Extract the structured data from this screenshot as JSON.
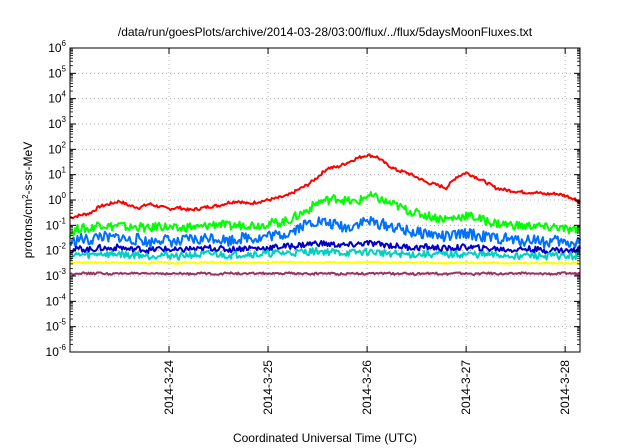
{
  "chart_data": {
    "type": "line",
    "title": "/data/run/goesPlots/archive/2014-03-28/03:00/flux/../flux/5daysMoonFluxes.txt",
    "xlabel": "Coordinated Universal Time (UTC)",
    "ylabel_parts": {
      "base": "protons/cm",
      "sup": "2",
      "rest": "-s-sr-MeV"
    },
    "y_scale": "log",
    "ylim": [
      1e-06,
      1000000.0
    ],
    "y_ticks": [
      {
        "base": "10",
        "exp": "-6",
        "value": 1e-06
      },
      {
        "base": "10",
        "exp": "-5",
        "value": 1e-05
      },
      {
        "base": "10",
        "exp": "-4",
        "value": 0.0001
      },
      {
        "base": "10",
        "exp": "-3",
        "value": 0.001
      },
      {
        "base": "10",
        "exp": "-2",
        "value": 0.01
      },
      {
        "base": "10",
        "exp": "-1",
        "value": 0.1
      },
      {
        "base": "10",
        "exp": "0",
        "value": 1.0
      },
      {
        "base": "10",
        "exp": "1",
        "value": 10.0
      },
      {
        "base": "10",
        "exp": "2",
        "value": 100.0
      },
      {
        "base": "10",
        "exp": "3",
        "value": 1000.0
      },
      {
        "base": "10",
        "exp": "4",
        "value": 10000.0
      },
      {
        "base": "10",
        "exp": "5",
        "value": 100000.0
      },
      {
        "base": "10",
        "exp": "6",
        "value": 1000000.0
      }
    ],
    "x_ticks": [
      "2014-3-24",
      "2014-3-25",
      "2014-3-26",
      "2014-3-27",
      "2014-3-28"
    ],
    "x_tick_pos": [
      1,
      2,
      3,
      4,
      5
    ],
    "xlim": [
      0,
      5.15
    ],
    "grid": true,
    "series": [
      {
        "color": "#ff0000",
        "x": [
          0,
          0.1,
          0.2,
          0.3,
          0.4,
          0.5,
          0.6,
          0.7,
          0.8,
          0.9,
          1.0,
          1.1,
          1.2,
          1.3,
          1.4,
          1.5,
          1.6,
          1.7,
          1.8,
          1.9,
          2.0,
          2.1,
          2.2,
          2.3,
          2.4,
          2.5,
          2.6,
          2.7,
          2.8,
          2.9,
          3.0,
          3.1,
          3.2,
          3.3,
          3.4,
          3.5,
          3.6,
          3.7,
          3.8,
          3.9,
          4.0,
          4.1,
          4.2,
          4.3,
          4.4,
          4.5,
          4.6,
          4.7,
          4.8,
          4.9,
          5.0,
          5.1,
          5.15
        ],
        "values": [
          0.2,
          0.25,
          0.3,
          0.55,
          0.7,
          0.9,
          0.6,
          0.5,
          0.7,
          0.55,
          0.45,
          0.5,
          0.4,
          0.45,
          0.55,
          0.6,
          0.8,
          0.9,
          0.7,
          0.85,
          1.0,
          1.2,
          1.5,
          2.5,
          4,
          8,
          18,
          20,
          30,
          45,
          60,
          50,
          25,
          15,
          12,
          8,
          5,
          4,
          3,
          8,
          12,
          8,
          5,
          3,
          2.5,
          2.2,
          2,
          2,
          1.7,
          1.8,
          1.5,
          1.1,
          0.8
        ]
      },
      {
        "color": "#00ff00",
        "x": [
          0,
          0.1,
          0.2,
          0.3,
          0.4,
          0.5,
          0.6,
          0.7,
          0.8,
          0.9,
          1.0,
          1.1,
          1.2,
          1.3,
          1.4,
          1.5,
          1.6,
          1.7,
          1.8,
          1.9,
          2.0,
          2.1,
          2.2,
          2.3,
          2.4,
          2.5,
          2.6,
          2.7,
          2.8,
          2.9,
          3.0,
          3.1,
          3.2,
          3.3,
          3.4,
          3.5,
          3.6,
          3.7,
          3.8,
          3.9,
          4.0,
          4.1,
          4.2,
          4.3,
          4.4,
          4.5,
          4.6,
          4.7,
          4.8,
          4.9,
          5.0,
          5.1,
          5.15
        ],
        "values": [
          0.05,
          0.08,
          0.07,
          0.12,
          0.09,
          0.1,
          0.08,
          0.09,
          0.07,
          0.1,
          0.08,
          0.07,
          0.09,
          0.08,
          0.1,
          0.12,
          0.09,
          0.1,
          0.11,
          0.1,
          0.12,
          0.13,
          0.15,
          0.25,
          0.4,
          0.8,
          1.0,
          1.2,
          0.9,
          0.8,
          1.5,
          1.2,
          0.8,
          0.6,
          0.4,
          0.3,
          0.25,
          0.2,
          0.18,
          0.2,
          0.25,
          0.2,
          0.15,
          0.12,
          0.11,
          0.1,
          0.09,
          0.1,
          0.08,
          0.09,
          0.07,
          0.06,
          0.09
        ]
      },
      {
        "color": "#0070ff",
        "x": [
          0,
          0.1,
          0.2,
          0.3,
          0.4,
          0.5,
          0.6,
          0.7,
          0.8,
          0.9,
          1.0,
          1.1,
          1.2,
          1.3,
          1.4,
          1.5,
          1.6,
          1.7,
          1.8,
          1.9,
          2.0,
          2.1,
          2.2,
          2.3,
          2.4,
          2.5,
          2.6,
          2.7,
          2.8,
          2.9,
          3.0,
          3.1,
          3.2,
          3.3,
          3.4,
          3.5,
          3.6,
          3.7,
          3.8,
          3.9,
          4.0,
          4.1,
          4.2,
          4.3,
          4.4,
          4.5,
          4.6,
          4.7,
          4.8,
          4.9,
          5.0,
          5.1,
          5.15
        ],
        "values": [
          0.02,
          0.03,
          0.025,
          0.04,
          0.03,
          0.035,
          0.025,
          0.03,
          0.02,
          0.03,
          0.025,
          0.02,
          0.03,
          0.025,
          0.035,
          0.03,
          0.025,
          0.03,
          0.035,
          0.03,
          0.04,
          0.04,
          0.05,
          0.08,
          0.12,
          0.15,
          0.12,
          0.1,
          0.08,
          0.12,
          0.15,
          0.12,
          0.1,
          0.08,
          0.06,
          0.05,
          0.05,
          0.04,
          0.035,
          0.04,
          0.05,
          0.04,
          0.035,
          0.03,
          0.03,
          0.025,
          0.025,
          0.03,
          0.02,
          0.025,
          0.02,
          0.02,
          0.03
        ]
      },
      {
        "color": "#0000c8",
        "x": [
          0,
          0.1,
          0.2,
          0.3,
          0.4,
          0.5,
          0.6,
          0.7,
          0.8,
          0.9,
          1.0,
          1.1,
          1.2,
          1.3,
          1.4,
          1.5,
          1.6,
          1.7,
          1.8,
          1.9,
          2.0,
          2.1,
          2.2,
          2.3,
          2.4,
          2.5,
          2.6,
          2.7,
          2.8,
          2.9,
          3.0,
          3.1,
          3.2,
          3.3,
          3.4,
          3.5,
          3.6,
          3.7,
          3.8,
          3.9,
          4.0,
          4.1,
          4.2,
          4.3,
          4.4,
          4.5,
          4.6,
          4.7,
          4.8,
          4.9,
          5.0,
          5.1,
          5.15
        ],
        "values": [
          0.01,
          0.012,
          0.011,
          0.013,
          0.012,
          0.014,
          0.011,
          0.012,
          0.01,
          0.012,
          0.011,
          0.01,
          0.012,
          0.011,
          0.013,
          0.012,
          0.011,
          0.012,
          0.013,
          0.012,
          0.013,
          0.014,
          0.015,
          0.016,
          0.018,
          0.02,
          0.018,
          0.017,
          0.016,
          0.018,
          0.02,
          0.018,
          0.017,
          0.015,
          0.014,
          0.013,
          0.014,
          0.013,
          0.012,
          0.013,
          0.014,
          0.013,
          0.012,
          0.012,
          0.011,
          0.011,
          0.012,
          0.011,
          0.01,
          0.011,
          0.01,
          0.01,
          0.012
        ]
      },
      {
        "color": "#00d0c0",
        "x": [
          0,
          0.1,
          0.2,
          0.3,
          0.4,
          0.5,
          0.6,
          0.7,
          0.8,
          0.9,
          1.0,
          1.1,
          1.2,
          1.3,
          1.4,
          1.5,
          1.6,
          1.7,
          1.8,
          1.9,
          2.0,
          2.1,
          2.2,
          2.3,
          2.4,
          2.5,
          2.6,
          2.7,
          2.8,
          2.9,
          3.0,
          3.1,
          3.2,
          3.3,
          3.4,
          3.5,
          3.6,
          3.7,
          3.8,
          3.9,
          4.0,
          4.1,
          4.2,
          4.3,
          4.4,
          4.5,
          4.6,
          4.7,
          4.8,
          4.9,
          5.0,
          5.1,
          5.15
        ],
        "values": [
          0.006,
          0.007,
          0.0065,
          0.008,
          0.007,
          0.0075,
          0.0065,
          0.007,
          0.006,
          0.007,
          0.0065,
          0.006,
          0.007,
          0.0065,
          0.0075,
          0.007,
          0.0065,
          0.007,
          0.0075,
          0.007,
          0.0075,
          0.008,
          0.008,
          0.0085,
          0.009,
          0.0095,
          0.009,
          0.0085,
          0.008,
          0.0085,
          0.009,
          0.0085,
          0.008,
          0.0075,
          0.007,
          0.007,
          0.0072,
          0.007,
          0.0068,
          0.007,
          0.0072,
          0.007,
          0.0068,
          0.0065,
          0.0065,
          0.0062,
          0.0065,
          0.0062,
          0.006,
          0.0062,
          0.006,
          0.006,
          0.0065
        ]
      },
      {
        "color": "#ffff00",
        "x": [
          0,
          0.1,
          0.2,
          0.3,
          0.4,
          0.5,
          0.6,
          0.7,
          0.8,
          0.9,
          1.0,
          1.1,
          1.2,
          1.3,
          1.4,
          1.5,
          1.6,
          1.7,
          1.8,
          1.9,
          2.0,
          2.1,
          2.2,
          2.3,
          2.4,
          2.5,
          2.6,
          2.7,
          2.8,
          2.9,
          3.0,
          3.1,
          3.2,
          3.3,
          3.4,
          3.5,
          3.6,
          3.7,
          3.8,
          3.9,
          4.0,
          4.1,
          4.2,
          4.3,
          4.4,
          4.5,
          4.6,
          4.7,
          4.8,
          4.9,
          5.0,
          5.1,
          5.15
        ],
        "values": [
          0.0032,
          0.0034,
          0.0033,
          0.0035,
          0.0034,
          0.0034,
          0.0033,
          0.0034,
          0.0032,
          0.0034,
          0.0033,
          0.0032,
          0.0034,
          0.0033,
          0.0034,
          0.0034,
          0.0033,
          0.0034,
          0.0034,
          0.0033,
          0.0034,
          0.0035,
          0.0035,
          0.0034,
          0.0035,
          0.0034,
          0.0035,
          0.0034,
          0.0033,
          0.0034,
          0.0035,
          0.0034,
          0.0033,
          0.0034,
          0.0033,
          0.0034,
          0.0034,
          0.0033,
          0.0032,
          0.0033,
          0.0034,
          0.0033,
          0.0032,
          0.0033,
          0.0032,
          0.0033,
          0.0033,
          0.0032,
          0.0032,
          0.0033,
          0.0032,
          0.0032,
          0.0033
        ]
      },
      {
        "color": "#993366",
        "x": [
          0,
          0.1,
          0.2,
          0.3,
          0.4,
          0.5,
          0.6,
          0.7,
          0.8,
          0.9,
          1.0,
          1.1,
          1.2,
          1.3,
          1.4,
          1.5,
          1.6,
          1.7,
          1.8,
          1.9,
          2.0,
          2.1,
          2.2,
          2.3,
          2.4,
          2.5,
          2.6,
          2.7,
          2.8,
          2.9,
          3.0,
          3.1,
          3.2,
          3.3,
          3.4,
          3.5,
          3.6,
          3.7,
          3.8,
          3.9,
          4.0,
          4.1,
          4.2,
          4.3,
          4.4,
          4.5,
          4.6,
          4.7,
          4.8,
          4.9,
          5.0,
          5.1,
          5.15
        ],
        "values": [
          0.0012,
          0.0013,
          0.00125,
          0.0013,
          0.0012,
          0.00125,
          0.0013,
          0.0012,
          0.00125,
          0.0013,
          0.0012,
          0.00125,
          0.0012,
          0.0013,
          0.00125,
          0.0012,
          0.0013,
          0.00125,
          0.0012,
          0.0013,
          0.00125,
          0.0012,
          0.0013,
          0.00125,
          0.0012,
          0.00125,
          0.0013,
          0.0012,
          0.00125,
          0.0013,
          0.0012,
          0.00125,
          0.0013,
          0.0012,
          0.00125,
          0.0012,
          0.0013,
          0.00125,
          0.0012,
          0.0013,
          0.00125,
          0.0012,
          0.0013,
          0.00125,
          0.0012,
          0.00125,
          0.0013,
          0.0012,
          0.00125,
          0.0012,
          0.0013,
          0.00125,
          0.0012
        ]
      }
    ]
  }
}
